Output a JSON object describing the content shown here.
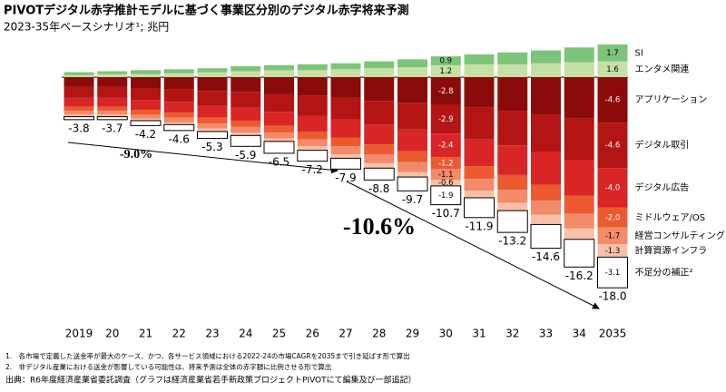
{
  "chart_data": {
    "type": "stacked_bar",
    "title": "PIVOTデジタル赤字推計モデルに基づく事業区分別のデジタル赤字将来予測",
    "subtitle": "2023-35年ベースシナリオ¹; 兆円",
    "categories": [
      "2019",
      "20",
      "21",
      "22",
      "23",
      "24",
      "25",
      "26",
      "27",
      "28",
      "29",
      "30",
      "31",
      "32",
      "33",
      "34",
      "2035"
    ],
    "series": [
      {
        "name": "エンタメ関連",
        "color": "#c5e0a5",
        "values": [
          0.2,
          0.3,
          0.3,
          0.4,
          0.5,
          0.6,
          0.7,
          0.7,
          0.8,
          0.9,
          1.0,
          1.2,
          1.3,
          1.3,
          1.4,
          1.5,
          1.6
        ],
        "value_labels": [
          null,
          null,
          null,
          null,
          null,
          null,
          null,
          null,
          null,
          null,
          null,
          "1.2",
          null,
          null,
          null,
          null,
          "1.6"
        ]
      },
      {
        "name": "SI",
        "color": "#7cc47a",
        "values": [
          0.3,
          0.3,
          0.4,
          0.4,
          0.4,
          0.5,
          0.5,
          0.6,
          0.6,
          0.7,
          0.8,
          0.9,
          1.0,
          1.2,
          1.3,
          1.5,
          1.7
        ],
        "value_labels": [
          null,
          null,
          null,
          null,
          null,
          null,
          null,
          null,
          null,
          null,
          null,
          "0.9",
          null,
          null,
          null,
          null,
          "1.7"
        ]
      },
      {
        "name": "アプリケーション",
        "color": "#8b0a0a",
        "values": [
          -1.0,
          -1.0,
          -1.1,
          -1.2,
          -1.4,
          -1.5,
          -1.7,
          -1.9,
          -2.1,
          -2.4,
          -2.6,
          -2.8,
          -3.1,
          -3.4,
          -3.8,
          -4.2,
          -4.6
        ],
        "value_labels": [
          null,
          null,
          null,
          null,
          null,
          null,
          null,
          null,
          null,
          null,
          null,
          "-2.8",
          null,
          null,
          null,
          null,
          "-4.6"
        ]
      },
      {
        "name": "デジタル取引",
        "color": "#b41414",
        "values": [
          -1.1,
          -1.1,
          -1.2,
          -1.3,
          -1.5,
          -1.6,
          -1.8,
          -2.0,
          -2.2,
          -2.4,
          -2.7,
          -2.9,
          -3.2,
          -3.5,
          -3.8,
          -4.2,
          -4.6
        ],
        "value_labels": [
          null,
          null,
          null,
          null,
          null,
          null,
          null,
          null,
          null,
          null,
          null,
          "-2.9",
          null,
          null,
          null,
          null,
          "-4.6"
        ]
      },
      {
        "name": "デジタル広告",
        "color": "#d92525",
        "values": [
          -0.9,
          -0.9,
          -1.0,
          -1.1,
          -1.2,
          -1.3,
          -1.4,
          -1.6,
          -1.8,
          -2.0,
          -2.2,
          -2.4,
          -2.7,
          -3.0,
          -3.3,
          -3.6,
          -4.0
        ],
        "value_labels": [
          null,
          null,
          null,
          null,
          null,
          null,
          null,
          null,
          null,
          null,
          null,
          "-2.4",
          null,
          null,
          null,
          null,
          "-4.0"
        ]
      },
      {
        "name": "ミドルウェア/OS",
        "color": "#ec5a30",
        "values": [
          -0.4,
          -0.4,
          -0.5,
          -0.5,
          -0.6,
          -0.6,
          -0.7,
          -0.8,
          -0.9,
          -1.0,
          -1.1,
          -1.2,
          -1.3,
          -1.5,
          -1.6,
          -1.8,
          -2.0
        ],
        "value_labels": [
          null,
          null,
          null,
          null,
          null,
          null,
          null,
          null,
          null,
          null,
          null,
          "-1.2",
          null,
          null,
          null,
          null,
          "-2.0"
        ]
      },
      {
        "name": "経営コンサルティング",
        "color": "#f38a6a",
        "values": [
          -0.4,
          -0.4,
          -0.4,
          -0.5,
          -0.5,
          -0.6,
          -0.6,
          -0.7,
          -0.8,
          -0.9,
          -1.0,
          -1.1,
          -1.2,
          -1.3,
          -1.4,
          -1.5,
          -1.7
        ],
        "value_labels": [
          null,
          null,
          null,
          null,
          null,
          null,
          null,
          null,
          null,
          null,
          null,
          "-1.1",
          null,
          null,
          null,
          null,
          "-1.7"
        ]
      },
      {
        "name": "計算資源インフラ",
        "color": "#f9c0a8",
        "values": [
          -0.2,
          -0.2,
          -0.2,
          -0.2,
          -0.3,
          -0.3,
          -0.3,
          -0.4,
          -0.4,
          -0.5,
          -0.5,
          -0.6,
          -0.7,
          -0.8,
          -1.0,
          -1.1,
          -1.3
        ],
        "value_labels": [
          null,
          null,
          null,
          null,
          null,
          null,
          null,
          null,
          null,
          null,
          null,
          "-0.6",
          null,
          null,
          null,
          null,
          "-1.3"
        ]
      },
      {
        "name": "不足分の補正²",
        "color": "#ffffff",
        "border": "#000000",
        "values": [
          -0.3,
          -0.3,
          -0.5,
          -0.6,
          -0.7,
          -1.1,
          -1.2,
          -1.1,
          -1.1,
          -1.2,
          -1.4,
          -1.9,
          -2.0,
          -2.2,
          -2.4,
          -2.8,
          -3.1
        ],
        "value_labels": [
          null,
          null,
          null,
          null,
          null,
          null,
          null,
          null,
          null,
          null,
          null,
          "-1.9",
          null,
          null,
          null,
          null,
          "-3.1"
        ]
      }
    ],
    "totals": [
      -3.8,
      -3.7,
      -4.2,
      -4.6,
      -5.3,
      -5.9,
      -6.5,
      -7.2,
      -7.9,
      -8.8,
      -9.7,
      -10.7,
      -11.9,
      -13.2,
      -14.6,
      -16.2,
      {
        "value": -18.0,
        "label": "-18.0"
      }
    ],
    "annotations": [
      "-9.0%",
      "-10.6%"
    ],
    "footnotes": [
      "1.　各市場で定義した送金率が最大のケース、かつ、各サービス領域における2022-24の市場CAGRを2035まで引き延ばす形で算出",
      "2.　非デジタル産業における送金が影響している可能性は、将来予測は全体の赤字額に比例させる形で算出"
    ],
    "source": "出典：R6年度経済産業省委託調査（グラフは経済産業省若手新政策プロジェクトPIVOTにて編集及び一部追記）"
  }
}
